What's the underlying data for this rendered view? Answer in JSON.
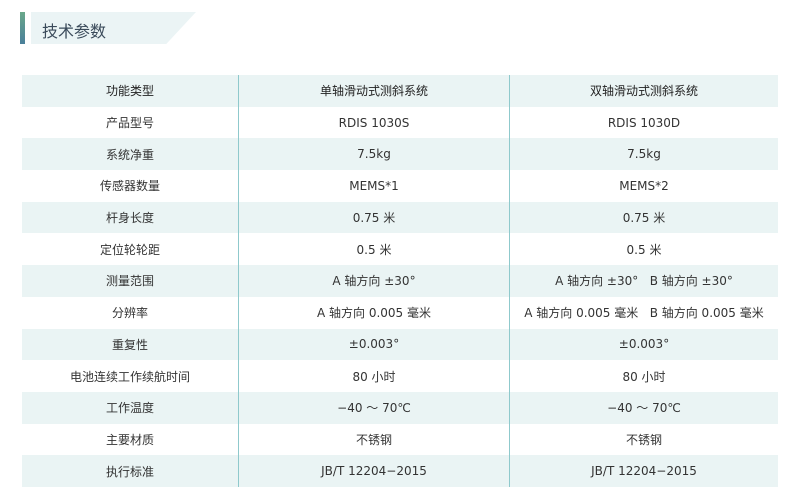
{
  "section_title": "技术参数",
  "table": {
    "headers": [
      "功能类型",
      "单轴滑动式测斜系统",
      "双轴滑动式测斜系统"
    ],
    "rows": [
      [
        "产品型号",
        "RDIS 1030S",
        "RDIS 1030D"
      ],
      [
        "系统净重",
        "7.5kg",
        "7.5kg"
      ],
      [
        "传感器数量",
        "MEMS*1",
        "MEMS*2"
      ],
      [
        "杆身长度",
        "0.75 米",
        "0.75 米"
      ],
      [
        "定位轮轮距",
        "0.5 米",
        "0.5 米"
      ],
      [
        "测量范围",
        "A 轴方向 ±30°",
        "A 轴方向 ±30°   B 轴方向 ±30°"
      ],
      [
        "分辨率",
        "A 轴方向 0.005 毫米",
        "A 轴方向 0.005 毫米   B 轴方向 0.005 毫米"
      ],
      [
        "重复性",
        "±0.003°",
        "±0.003°"
      ],
      [
        "电池连续工作续航时间",
        "80 小时",
        "80 小时"
      ],
      [
        "工作温度",
        "−40 ～ 70℃",
        "−40 ～ 70℃"
      ],
      [
        "主要材质",
        "不锈钢",
        "不锈钢"
      ],
      [
        "执行标准",
        "JB/T 12204−2015",
        "JB/T 12204−2015"
      ]
    ]
  }
}
